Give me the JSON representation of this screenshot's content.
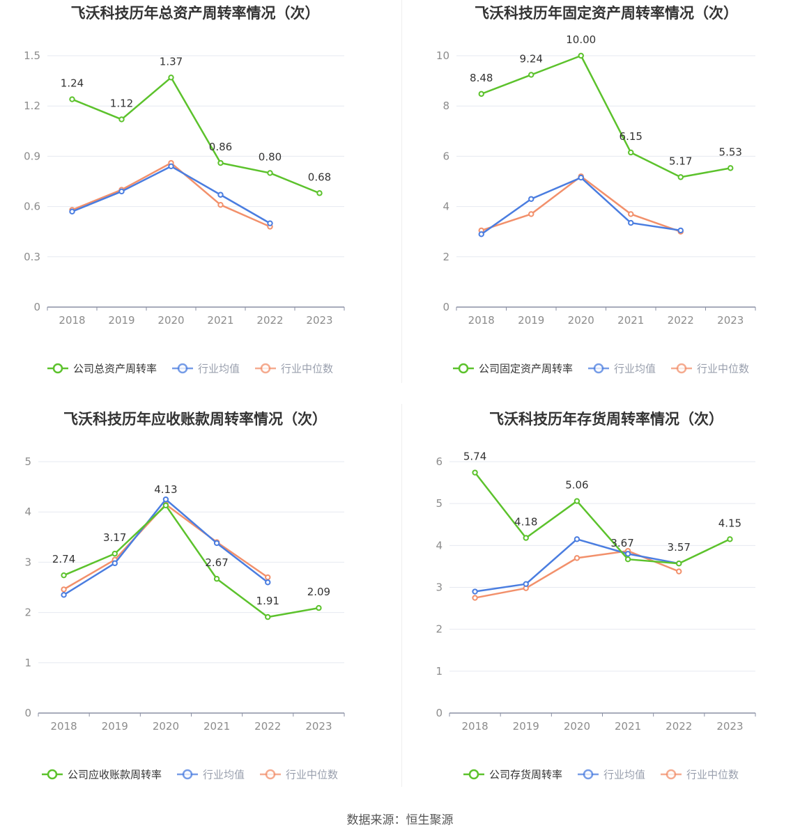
{
  "source_label": "数据来源：恒生聚源",
  "colors": {
    "company": "#5cc22c",
    "industry_avg": "#4a7de0",
    "industry_median": "#f2906b",
    "grid": "#e6e9f0",
    "axis": "#8a8fa3",
    "tick_text": "#8c8c8c"
  },
  "chart_data": [
    {
      "type": "line",
      "title": "飞沃科技历年总资产周转率情况（次）",
      "categories": [
        "2018",
        "2019",
        "2020",
        "2021",
        "2022",
        "2023"
      ],
      "ylim": [
        0,
        1.5
      ],
      "yticks": [
        "0",
        "0.3",
        "0.6",
        "0.9",
        "1.2",
        "1.5"
      ],
      "grid": true,
      "legend_position": "bottom",
      "series": [
        {
          "name": "公司总资产周转率",
          "key": "company",
          "values": [
            1.24,
            1.12,
            1.37,
            0.86,
            0.8,
            0.68
          ],
          "labels": [
            "1.24",
            "1.12",
            "1.37",
            "0.86",
            "0.80",
            "0.68"
          ]
        },
        {
          "name": "行业均值",
          "key": "industry_avg",
          "values": [
            0.57,
            0.69,
            0.84,
            0.67,
            0.5,
            null
          ]
        },
        {
          "name": "行业中位数",
          "key": "industry_median",
          "values": [
            0.58,
            0.7,
            0.86,
            0.61,
            0.48,
            null
          ]
        }
      ]
    },
    {
      "type": "line",
      "title": "飞沃科技历年固定资产周转率情况（次）",
      "categories": [
        "2018",
        "2019",
        "2020",
        "2021",
        "2022",
        "2023"
      ],
      "ylim": [
        0,
        10
      ],
      "yticks": [
        "0",
        "2",
        "4",
        "6",
        "8",
        "10"
      ],
      "grid": true,
      "legend_position": "bottom",
      "series": [
        {
          "name": "公司固定资产周转率",
          "key": "company",
          "values": [
            8.48,
            9.24,
            10.0,
            6.15,
            5.17,
            5.53
          ],
          "labels": [
            "8.48",
            "9.24",
            "10.00",
            "6.15",
            "5.17",
            "5.53"
          ]
        },
        {
          "name": "行业均值",
          "key": "industry_avg",
          "values": [
            2.9,
            4.3,
            5.15,
            3.35,
            3.05,
            null
          ]
        },
        {
          "name": "行业中位数",
          "key": "industry_median",
          "values": [
            3.05,
            3.7,
            5.2,
            3.7,
            3.0,
            null
          ]
        }
      ]
    },
    {
      "type": "line",
      "title": "飞沃科技历年应收账款周转率情况（次）",
      "categories": [
        "2018",
        "2019",
        "2020",
        "2021",
        "2022",
        "2023"
      ],
      "ylim": [
        0,
        5
      ],
      "yticks": [
        "0",
        "1",
        "2",
        "3",
        "4",
        "5"
      ],
      "grid": true,
      "legend_position": "bottom",
      "series": [
        {
          "name": "公司应收账款周转率",
          "key": "company",
          "values": [
            2.74,
            3.17,
            4.13,
            2.67,
            1.91,
            2.09
          ],
          "labels": [
            "2.74",
            "3.17",
            "4.13",
            "2.67",
            "1.91",
            "2.09"
          ]
        },
        {
          "name": "行业均值",
          "key": "industry_avg",
          "values": [
            2.35,
            2.98,
            4.25,
            3.38,
            2.6,
            null
          ]
        },
        {
          "name": "行业中位数",
          "key": "industry_median",
          "values": [
            2.46,
            3.05,
            4.15,
            3.4,
            2.7,
            null
          ]
        }
      ]
    },
    {
      "type": "line",
      "title": "飞沃科技历年存货周转率情况（次）",
      "categories": [
        "2018",
        "2019",
        "2020",
        "2021",
        "2022",
        "2023"
      ],
      "ylim": [
        0,
        6
      ],
      "yticks": [
        "0",
        "1",
        "2",
        "3",
        "4",
        "5",
        "6"
      ],
      "grid": true,
      "legend_position": "bottom",
      "series": [
        {
          "name": "公司存货周转率",
          "key": "company",
          "values": [
            5.74,
            4.18,
            5.06,
            3.67,
            3.57,
            4.15
          ],
          "labels": [
            "5.74",
            "4.18",
            "5.06",
            "3.67",
            "3.57",
            "4.15"
          ]
        },
        {
          "name": "行业均值",
          "key": "industry_avg",
          "values": [
            2.9,
            3.08,
            4.15,
            3.8,
            3.57,
            null
          ]
        },
        {
          "name": "行业中位数",
          "key": "industry_median",
          "values": [
            2.75,
            2.98,
            3.7,
            3.87,
            3.38,
            null
          ]
        }
      ]
    }
  ]
}
